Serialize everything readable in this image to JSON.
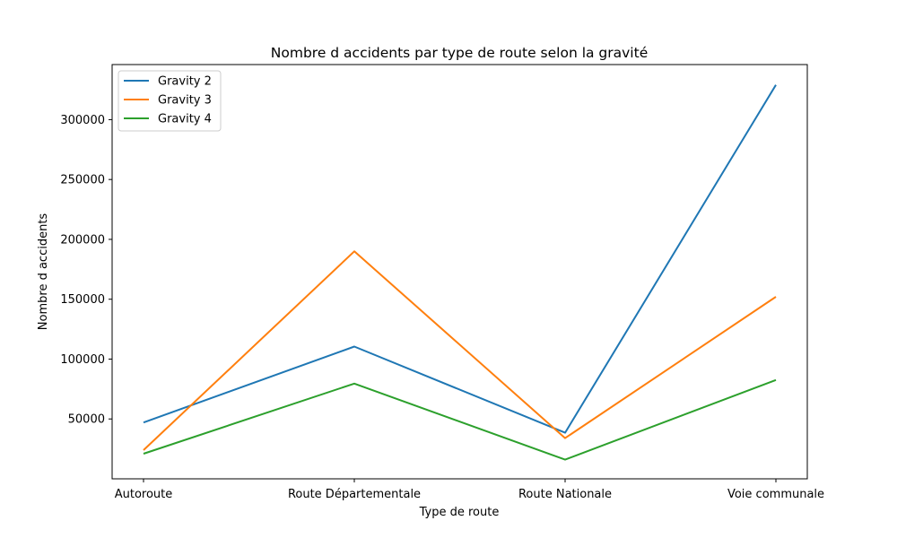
{
  "chart_data": {
    "type": "line",
    "title": "Nombre d accidents par type de route selon la gravité",
    "xlabel": "Type de route",
    "ylabel": "Nombre d accidents",
    "categories": [
      "Autoroute",
      "Route Départementale",
      "Route Nationale",
      "Voie communale"
    ],
    "ylim": [
      0,
      346000
    ],
    "yticks": [
      50000,
      100000,
      150000,
      200000,
      250000,
      300000
    ],
    "ytick_labels": [
      "50000",
      "100000",
      "150000",
      "200000",
      "250000",
      "300000"
    ],
    "grid": false,
    "legend_position": "top-left",
    "series": [
      {
        "name": "Gravity 2",
        "color": "#1f77b4",
        "values": [
          47000,
          110500,
          38500,
          329000
        ]
      },
      {
        "name": "Gravity 3",
        "color": "#ff7f0e",
        "values": [
          24000,
          190000,
          34000,
          152000
        ]
      },
      {
        "name": "Gravity 4",
        "color": "#2ca02c",
        "values": [
          21000,
          79500,
          16000,
          82500
        ]
      }
    ]
  }
}
